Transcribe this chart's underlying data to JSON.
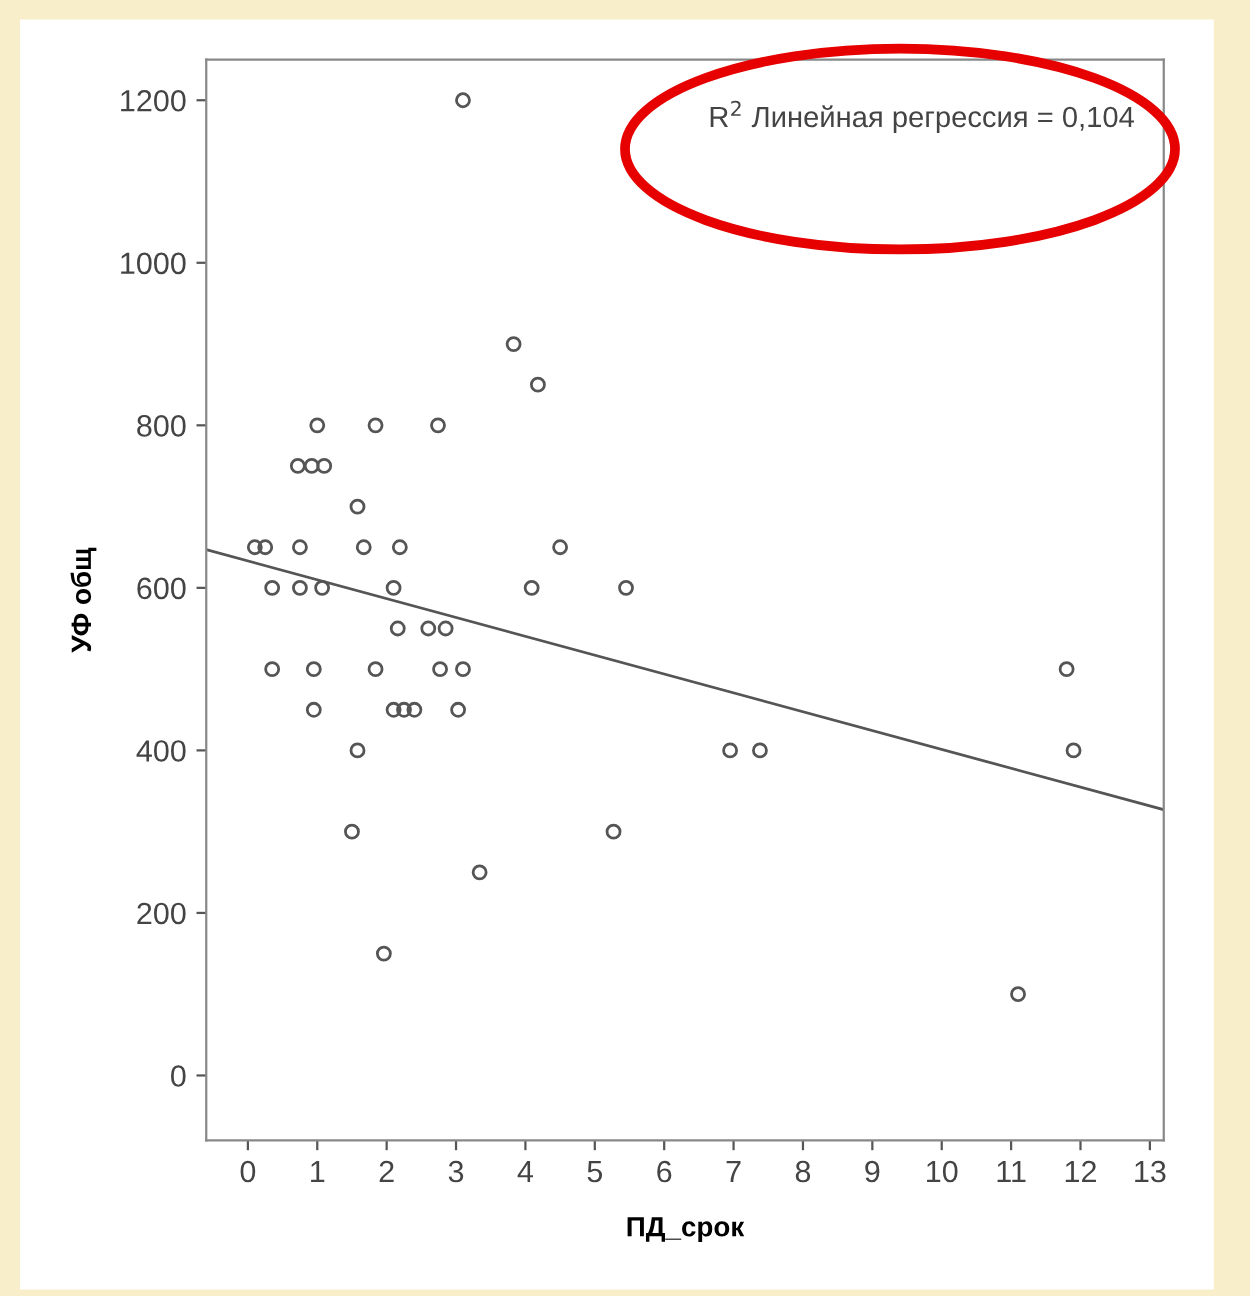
{
  "chart_data": {
    "type": "scatter",
    "xlabel": "ПД_срок",
    "ylabel": "УФ общ",
    "xlim": [
      -0.6,
      13.2
    ],
    "ylim": [
      -80,
      1250
    ],
    "xticks": [
      0,
      1,
      2,
      3,
      4,
      5,
      6,
      7,
      8,
      9,
      10,
      11,
      12,
      13
    ],
    "yticks": [
      0,
      200,
      400,
      600,
      800,
      1000,
      1200
    ],
    "grid": false,
    "series": [
      {
        "type": "scatter",
        "marker": "circle",
        "color": "#555555",
        "x": [
          0.1,
          0.25,
          0.35,
          0.35,
          0.72,
          0.92,
          1.1,
          1.0,
          0.75,
          0.75,
          1.07,
          0.95,
          0.95,
          1.58,
          1.67,
          1.58,
          1.5,
          1.84,
          1.84,
          1.96,
          2.1,
          2.19,
          2.16,
          2.1,
          2.25,
          2.4,
          2.6,
          2.85,
          2.77,
          2.74,
          3.1,
          3.03,
          3.1,
          3.34,
          3.83,
          4.18,
          4.09,
          4.5,
          5.45,
          5.27,
          6.95,
          7.38,
          11.8,
          11.9,
          11.1
        ],
        "values": [
          650,
          650,
          600,
          500,
          750,
          750,
          750,
          800,
          650,
          600,
          600,
          500,
          450,
          700,
          650,
          400,
          300,
          800,
          500,
          150,
          600,
          650,
          550,
          450,
          450,
          450,
          550,
          550,
          500,
          800,
          1200,
          450,
          500,
          250,
          900,
          850,
          600,
          650,
          600,
          300,
          400,
          400,
          500,
          400,
          100
        ]
      },
      {
        "type": "line",
        "color": "#555555",
        "x": [
          -0.6,
          13.2
        ],
        "values": [
          647,
          327
        ]
      }
    ],
    "annotations": [
      "R$^{2}$ Линейная регрессия = 0,104"
    ]
  }
}
